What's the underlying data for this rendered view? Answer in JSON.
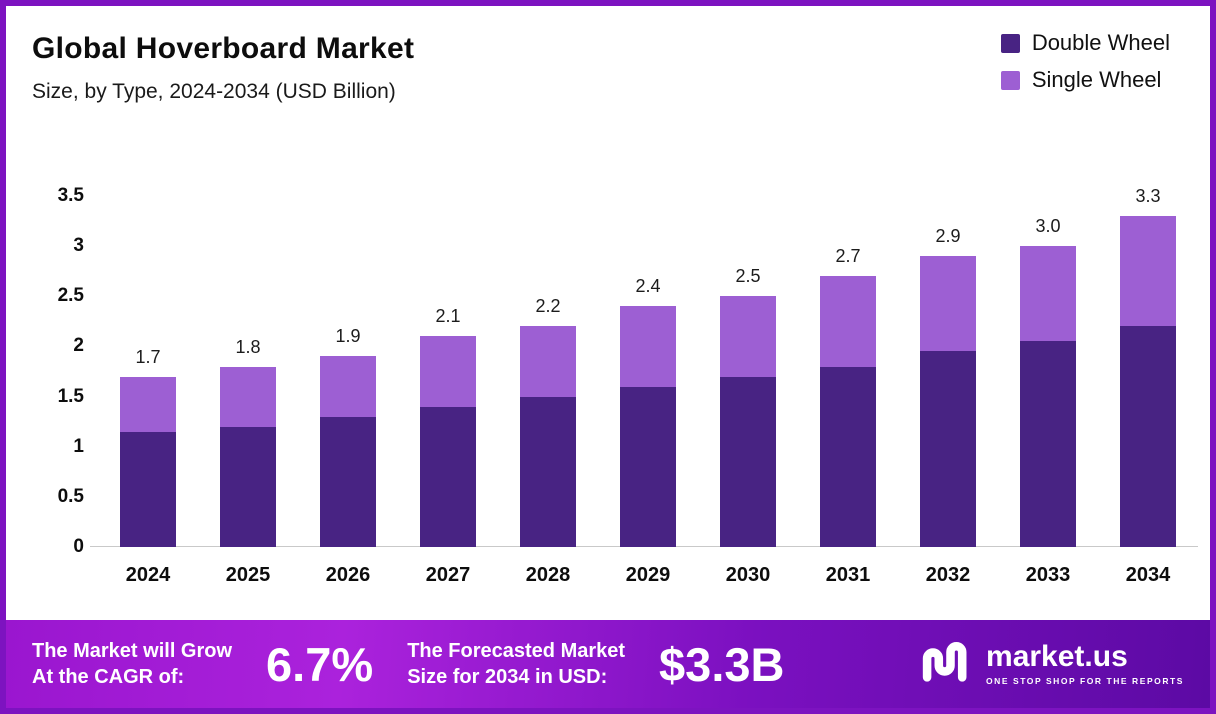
{
  "header": {
    "title": "Global Hoverboard Market",
    "subtitle": "Size, by Type, 2024-2034 (USD Billion)"
  },
  "legend": [
    {
      "label": "Double Wheel",
      "color": "#482383"
    },
    {
      "label": "Single Wheel",
      "color": "#9d5fd3"
    }
  ],
  "chart_data": {
    "type": "bar",
    "stacked": true,
    "title": "Global Hoverboard Market Size, by Type, 2024-2034 (USD Billion)",
    "categories": [
      "2024",
      "2025",
      "2026",
      "2027",
      "2028",
      "2029",
      "2030",
      "2031",
      "2032",
      "2033",
      "2034"
    ],
    "series": [
      {
        "name": "Double Wheel",
        "color": "#482383",
        "values": [
          1.15,
          1.2,
          1.3,
          1.4,
          1.5,
          1.6,
          1.7,
          1.8,
          1.95,
          2.05,
          2.2
        ]
      },
      {
        "name": "Single Wheel",
        "color": "#9d5fd3",
        "values": [
          0.55,
          0.6,
          0.6,
          0.7,
          0.7,
          0.8,
          0.8,
          0.9,
          0.95,
          0.95,
          1.1
        ]
      }
    ],
    "totals": [
      1.7,
      1.8,
      1.9,
      2.1,
      2.2,
      2.4,
      2.5,
      2.7,
      2.9,
      3.0,
      3.3
    ],
    "total_labels": [
      "1.7",
      "1.8",
      "1.9",
      "2.1",
      "2.2",
      "2.4",
      "2.5",
      "2.7",
      "2.9",
      "3.0",
      "3.3"
    ],
    "ylim": [
      0,
      3.5
    ],
    "yticks": [
      "3.5",
      "3",
      "2.5",
      "2",
      "1.5",
      "1",
      "0.5",
      "0"
    ],
    "grid": false,
    "legend_position": "top-right"
  },
  "banner": {
    "cagr_line1": "The Market will Grow",
    "cagr_line2": "At the CAGR of:",
    "cagr_value": "6.7%",
    "forecast_line1": "The Forecasted Market",
    "forecast_line2": "Size for 2034 in USD:",
    "forecast_value": "$3.3B",
    "brand_name": "market.us",
    "brand_tagline": "ONE STOP SHOP FOR THE REPORTS"
  }
}
